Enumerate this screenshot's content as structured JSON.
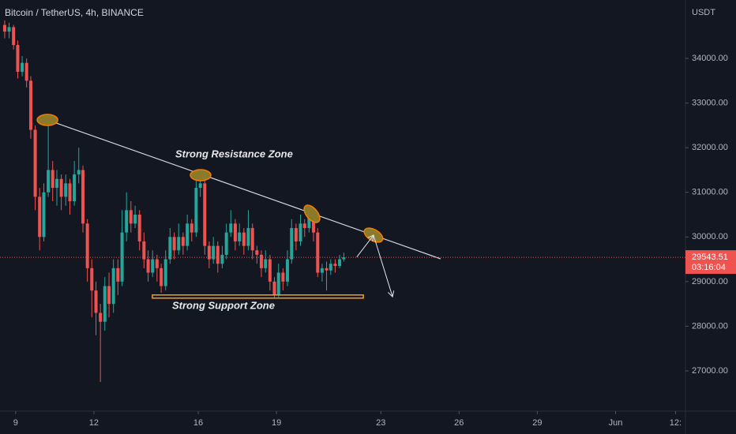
{
  "chart_data": {
    "type": "candlestick",
    "title": "Bitcoin / TetherUS, 4h, BINANCE",
    "currency": "USDT",
    "x": [
      8.58,
      8.75,
      8.92,
      9.08,
      9.25,
      9.42,
      9.58,
      9.75,
      9.92,
      10.08,
      10.25,
      10.42,
      10.58,
      10.75,
      10.92,
      11.08,
      11.25,
      11.42,
      11.58,
      11.75,
      11.92,
      12.08,
      12.25,
      12.42,
      12.58,
      12.75,
      12.92,
      13.08,
      13.25,
      13.42,
      13.58,
      13.75,
      13.92,
      14.08,
      14.25,
      14.42,
      14.58,
      14.75,
      14.92,
      15.08,
      15.25,
      15.42,
      15.58,
      15.75,
      15.92,
      16.08,
      16.25,
      16.42,
      16.58,
      16.75,
      16.92,
      17.08,
      17.25,
      17.42,
      17.58,
      17.75,
      17.92,
      18.08,
      18.25,
      18.42,
      18.58,
      18.75,
      18.92,
      19.08,
      19.25,
      19.42,
      19.58,
      19.75,
      19.92,
      20.08,
      20.25,
      20.42,
      20.58,
      20.75,
      20.92,
      21.08,
      21.25,
      21.42,
      21.58
    ],
    "open": [
      34750,
      34600,
      34700,
      34300,
      33700,
      33900,
      33500,
      32400,
      30900,
      30000,
      31000,
      31500,
      31100,
      31300,
      30900,
      31200,
      30800,
      31400,
      31500,
      30300,
      29300,
      28800,
      28300,
      28100,
      28900,
      28500,
      29300,
      29000,
      30100,
      30600,
      30300,
      30500,
      29900,
      29500,
      29200,
      29500,
      29300,
      28900,
      29500,
      30000,
      29700,
      30000,
      29800,
      30300,
      30100,
      31100,
      31200,
      29800,
      29500,
      29800,
      29400,
      29600,
      30100,
      30300,
      29900,
      30100,
      29800,
      30200,
      29700,
      29600,
      29300,
      29500,
      29000,
      28700,
      29200,
      29000,
      29500,
      30200,
      29900,
      30300,
      30200,
      30500,
      30100,
      29200,
      29300,
      29250,
      29400,
      29350,
      29500
    ],
    "high": [
      34850,
      34800,
      34750,
      34400,
      34050,
      34000,
      33600,
      32500,
      31100,
      31200,
      32650,
      31700,
      31500,
      31400,
      31400,
      31300,
      31700,
      32000,
      31600,
      30400,
      29500,
      29000,
      28500,
      29100,
      29200,
      29500,
      29500,
      30600,
      31000,
      30800,
      30700,
      30600,
      30100,
      29700,
      29700,
      29600,
      29400,
      29700,
      30200,
      30100,
      30300,
      30100,
      30500,
      30400,
      31300,
      31500,
      31300,
      29900,
      30000,
      29900,
      29800,
      30300,
      30600,
      30400,
      30300,
      30200,
      30600,
      30300,
      29800,
      29700,
      29700,
      29600,
      29100,
      29400,
      29300,
      29700,
      30400,
      30300,
      30500,
      30400,
      30700,
      30600,
      30200,
      29400,
      29450,
      29500,
      29500,
      29600,
      29650
    ],
    "low": [
      34450,
      34450,
      34200,
      33550,
      33600,
      33350,
      32200,
      30600,
      29700,
      29900,
      30900,
      30800,
      30700,
      30600,
      30700,
      30500,
      30700,
      31200,
      30100,
      29000,
      28200,
      27800,
      26750,
      27900,
      28200,
      28300,
      28700,
      28900,
      29900,
      30100,
      30200,
      29700,
      29300,
      29000,
      29100,
      29000,
      28750,
      28800,
      29400,
      29500,
      29600,
      29600,
      29700,
      29900,
      30000,
      30900,
      29600,
      29300,
      29400,
      29200,
      29300,
      29500,
      30000,
      29700,
      29800,
      29600,
      29700,
      29500,
      29400,
      29100,
      29200,
      28800,
      28650,
      28650,
      28800,
      28900,
      29400,
      29700,
      29800,
      30000,
      30100,
      29900,
      29100,
      29000,
      28800,
      29150,
      29200,
      29300,
      29450
    ],
    "close": [
      34600,
      34700,
      34300,
      33700,
      33900,
      33500,
      32400,
      30900,
      30000,
      31000,
      31500,
      31100,
      31300,
      30900,
      31200,
      30800,
      31400,
      31500,
      30300,
      29300,
      28800,
      28300,
      28100,
      28900,
      28500,
      29300,
      29000,
      30100,
      30600,
      30300,
      30500,
      29900,
      29500,
      29200,
      29500,
      29300,
      28900,
      29500,
      30000,
      29700,
      30000,
      29800,
      30300,
      30100,
      31100,
      31200,
      29800,
      29500,
      29800,
      29400,
      29600,
      30100,
      30300,
      29900,
      30100,
      29800,
      30200,
      29700,
      29600,
      29300,
      29500,
      29000,
      28700,
      29200,
      29000,
      29500,
      30200,
      29900,
      30300,
      30200,
      30500,
      30100,
      29200,
      29300,
      29250,
      29400,
      29350,
      29500,
      29543.51
    ],
    "up_color": "#26a69a",
    "down_color": "#ef5350",
    "xlim": [
      8.4,
      34.68
    ],
    "xticks": [
      9,
      12,
      16,
      19,
      23,
      26,
      29,
      {
        "value": 32,
        "label": "Jun"
      },
      {
        "value": 34.3,
        "label": "12:"
      }
    ],
    "ylim": [
      26116,
      35308
    ],
    "yticks": [
      {
        "value": 27000,
        "label": "27000.00"
      },
      {
        "value": 28000,
        "label": "28000.00"
      },
      {
        "value": 29000,
        "label": "29000.00"
      },
      {
        "value": 30000,
        "label": "30000.00"
      },
      {
        "value": 31000,
        "label": "31000.00"
      },
      {
        "value": 32000,
        "label": "32000.00"
      },
      {
        "value": 33000,
        "label": "33000.00"
      },
      {
        "value": 34000,
        "label": "34000.00"
      }
    ],
    "last_price": 29543.51,
    "last_price_label": "29543.51",
    "countdown": "03:16:04",
    "trendline": {
      "x": [
        10.22,
        25.29
      ],
      "y": [
        32621,
        29510
      ]
    },
    "highlights": {
      "x": [
        10.22,
        16.09,
        20.36,
        22.72
      ],
      "y": [
        32621,
        31384,
        30518,
        30040
      ]
    },
    "support_zone": {
      "x": [
        14.24,
        22.33
      ],
      "y": [
        28700,
        28630
      ]
    },
    "arrow_up": {
      "x": [
        22.08,
        22.72
      ],
      "y": [
        29550,
        30040
      ]
    },
    "arrow_down": {
      "x": [
        22.72,
        23.45
      ],
      "y": [
        30040,
        28660
      ]
    },
    "annotations": [
      "Strong Resistance Zone",
      "Strong Support Zone"
    ]
  }
}
